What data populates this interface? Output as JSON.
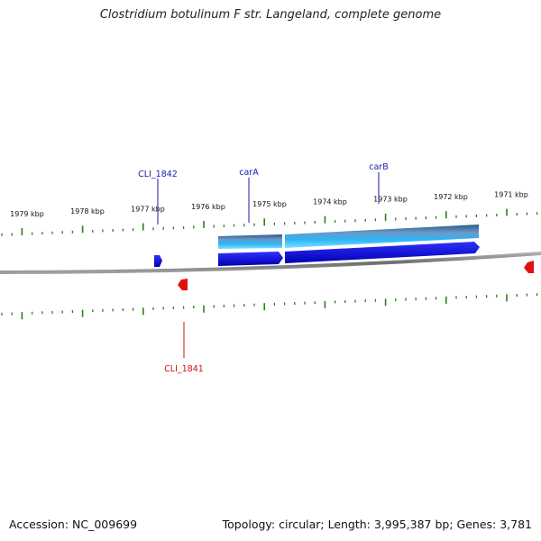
{
  "title": "Clostridium botulinum F str. Langeland, complete genome",
  "accession": "Accession: NC_009699",
  "topology": "Topology: circular; Length: 3,995,387 bp; Genes: 3,781",
  "colors": {
    "tick": "#2e7d1e",
    "forward_gene": "#1010e0",
    "reverse_gene": "#e01010",
    "cds_light": "#29b6f6",
    "backbone": "#8a8a8a",
    "forward_label": "#1a1aa8",
    "reverse_label": "#cc1111"
  },
  "ruler": {
    "labels": [
      "1979 kbp",
      "1978 kbp",
      "1977 kbp",
      "1976 kbp",
      "1975 kbp",
      "1974 kbp",
      "1973 kbp",
      "1972 kbp",
      "1971 kbp"
    ]
  },
  "genes": [
    {
      "name": "CLI_1842",
      "strand": "forward"
    },
    {
      "name": "carA",
      "strand": "forward"
    },
    {
      "name": "carB",
      "strand": "forward"
    },
    {
      "name": "CLI_1841",
      "strand": "reverse"
    }
  ]
}
